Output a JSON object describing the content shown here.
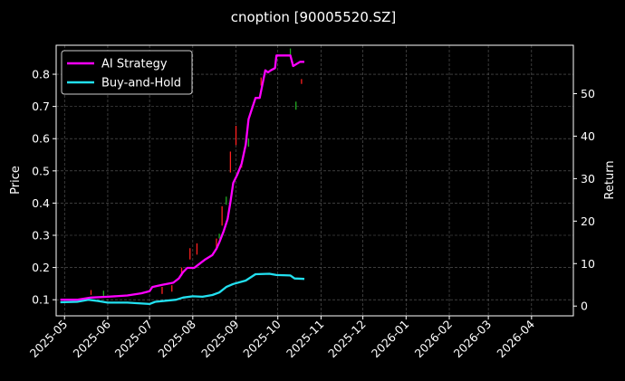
{
  "chart_data": {
    "type": "line",
    "title": "cnoption [90005520.SZ]",
    "left_axis": {
      "label": "Price",
      "ticks": [
        "0.1",
        "0.2",
        "0.3",
        "0.4",
        "0.5",
        "0.6",
        "0.7",
        "0.8"
      ],
      "ylim": [
        0.05,
        0.89
      ]
    },
    "right_axis": {
      "label": "Return",
      "ticks": [
        "0",
        "10",
        "20",
        "30",
        "40",
        "50"
      ],
      "ylim": [
        -2.3,
        61.4
      ]
    },
    "x_ticks": [
      "2025-05",
      "2025-06",
      "2025-07",
      "2025-08",
      "2025-09",
      "2025-10",
      "2025-11",
      "2025-12",
      "2026-01",
      "2026-02",
      "2026-03",
      "2026-04"
    ],
    "grid": true,
    "legend_position": "top-left",
    "series": [
      {
        "name": "AI Strategy",
        "axis": "right",
        "color": "#ff00ff",
        "points": [
          [
            "2025-04-28",
            1.5
          ],
          [
            "2025-05-10",
            1.5
          ],
          [
            "2025-05-20",
            2.0
          ],
          [
            "2025-06-01",
            2.2
          ],
          [
            "2025-06-15",
            2.5
          ],
          [
            "2025-06-25",
            3.0
          ],
          [
            "2025-07-01",
            3.5
          ],
          [
            "2025-07-03",
            4.5
          ],
          [
            "2025-07-10",
            5.0
          ],
          [
            "2025-07-18",
            5.5
          ],
          [
            "2025-07-22",
            6.5
          ],
          [
            "2025-07-25",
            8.0
          ],
          [
            "2025-07-28",
            9.0
          ],
          [
            "2025-08-02",
            9.0
          ],
          [
            "2025-08-06",
            10.0
          ],
          [
            "2025-08-10",
            11.0
          ],
          [
            "2025-08-15",
            12.0
          ],
          [
            "2025-08-18",
            13.5
          ],
          [
            "2025-08-20",
            15.0
          ],
          [
            "2025-08-23",
            17.5
          ],
          [
            "2025-08-26",
            20.5
          ],
          [
            "2025-08-28",
            24.5
          ],
          [
            "2025-08-30",
            29.0
          ],
          [
            "2025-09-02",
            31.0
          ],
          [
            "2025-09-05",
            33.5
          ],
          [
            "2025-09-08",
            38.0
          ],
          [
            "2025-09-10",
            44.0
          ],
          [
            "2025-09-15",
            49.0
          ],
          [
            "2025-09-18",
            49.0
          ],
          [
            "2025-09-22",
            55.5
          ],
          [
            "2025-09-24",
            55.0
          ],
          [
            "2025-09-26",
            55.5
          ],
          [
            "2025-09-29",
            56.0
          ],
          [
            "2025-09-30",
            59.0
          ],
          [
            "2025-10-10",
            59.0
          ],
          [
            "2025-10-12",
            56.5
          ],
          [
            "2025-10-17",
            57.5
          ],
          [
            "2025-10-20",
            57.5
          ]
        ]
      },
      {
        "name": "Buy-and-Hold",
        "axis": "right",
        "color": "#22e0f0",
        "points": [
          [
            "2025-04-28",
            0.9
          ],
          [
            "2025-05-10",
            1.0
          ],
          [
            "2025-05-18",
            1.5
          ],
          [
            "2025-05-25",
            1.2
          ],
          [
            "2025-06-01",
            0.8
          ],
          [
            "2025-06-15",
            0.8
          ],
          [
            "2025-07-01",
            0.5
          ],
          [
            "2025-07-05",
            1.0
          ],
          [
            "2025-07-20",
            1.5
          ],
          [
            "2025-07-25",
            2.0
          ],
          [
            "2025-08-01",
            2.3
          ],
          [
            "2025-08-08",
            2.2
          ],
          [
            "2025-08-15",
            2.6
          ],
          [
            "2025-08-20",
            3.2
          ],
          [
            "2025-08-25",
            4.5
          ],
          [
            "2025-08-30",
            5.2
          ],
          [
            "2025-09-08",
            6.0
          ],
          [
            "2025-09-15",
            7.5
          ],
          [
            "2025-09-25",
            7.6
          ],
          [
            "2025-09-30",
            7.3
          ],
          [
            "2025-10-10",
            7.2
          ],
          [
            "2025-10-13",
            6.5
          ],
          [
            "2025-10-20",
            6.4
          ]
        ]
      }
    ],
    "candles": [
      {
        "date": "2025-05-20",
        "low": 0.115,
        "high": 0.13,
        "color": "#ff2020"
      },
      {
        "date": "2025-05-29",
        "low": 0.112,
        "high": 0.128,
        "color": "#22aa22"
      },
      {
        "date": "2025-07-10",
        "low": 0.118,
        "high": 0.14,
        "color": "#ff2020"
      },
      {
        "date": "2025-07-17",
        "low": 0.125,
        "high": 0.145,
        "color": "#ff2020"
      },
      {
        "date": "2025-07-24",
        "low": 0.175,
        "high": 0.2,
        "color": "#ff2020"
      },
      {
        "date": "2025-07-30",
        "low": 0.225,
        "high": 0.26,
        "color": "#ff2020"
      },
      {
        "date": "2025-08-04",
        "low": 0.24,
        "high": 0.275,
        "color": "#ff2020"
      },
      {
        "date": "2025-08-18",
        "low": 0.255,
        "high": 0.29,
        "color": "#ff2020"
      },
      {
        "date": "2025-08-20",
        "low": 0.29,
        "high": 0.305,
        "color": "#22aa22"
      },
      {
        "date": "2025-08-22",
        "low": 0.33,
        "high": 0.39,
        "color": "#ff2020"
      },
      {
        "date": "2025-08-25",
        "low": 0.395,
        "high": 0.42,
        "color": "#22aa22"
      },
      {
        "date": "2025-08-28",
        "low": 0.495,
        "high": 0.56,
        "color": "#ff2020"
      },
      {
        "date": "2025-09-01",
        "low": 0.58,
        "high": 0.64,
        "color": "#ff2020"
      },
      {
        "date": "2025-09-05",
        "low": 0.51,
        "high": 0.53,
        "color": "#ff2020"
      },
      {
        "date": "2025-09-10",
        "low": 0.575,
        "high": 0.6,
        "color": "#22aa22"
      },
      {
        "date": "2025-09-19",
        "low": 0.765,
        "high": 0.79,
        "color": "#ff2020"
      },
      {
        "date": "2025-10-10",
        "low": 0.86,
        "high": 0.88,
        "color": "#22aa22"
      },
      {
        "date": "2025-10-14",
        "low": 0.69,
        "high": 0.715,
        "color": "#22aa22"
      },
      {
        "date": "2025-10-18",
        "low": 0.77,
        "high": 0.785,
        "color": "#ff2020"
      }
    ]
  }
}
